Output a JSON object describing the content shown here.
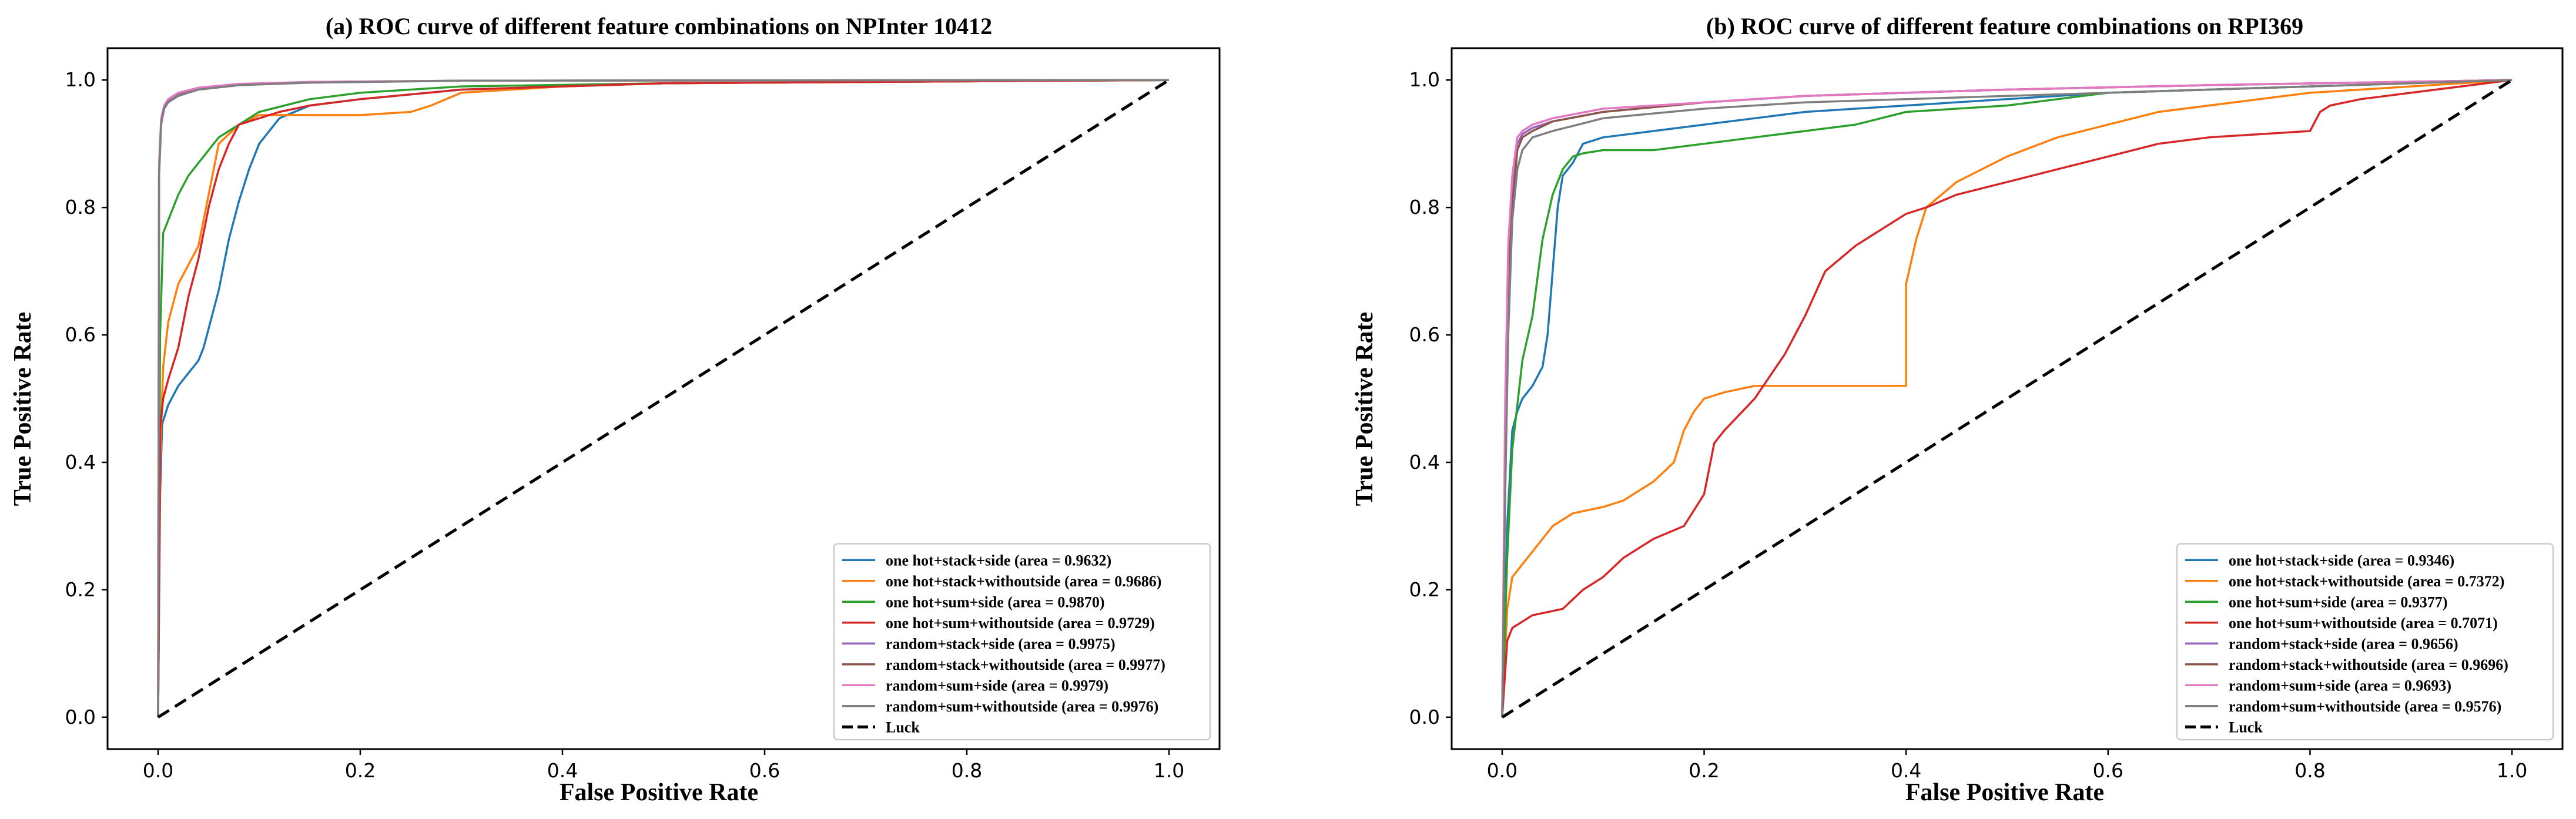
{
  "chart_data": [
    {
      "type": "line",
      "title": "(a) ROC curve of different feature combinations on NPInter 10412",
      "xlabel": "False Positive Rate",
      "ylabel": "True Positive Rate",
      "xlim": [
        -0.05,
        1.05
      ],
      "ylim": [
        -0.05,
        1.05
      ],
      "xticks": [
        "0.0",
        "0.2",
        "0.4",
        "0.6",
        "0.8",
        "1.0"
      ],
      "yticks": [
        "0.0",
        "0.2",
        "0.4",
        "0.6",
        "0.8",
        "1.0"
      ],
      "grid": false,
      "legend_position": "lower right",
      "series": [
        {
          "name": "one hot+stack+side (area = 0.9632)",
          "color": "#1f77b4",
          "x": [
            0,
            0.002,
            0.004,
            0.01,
            0.02,
            0.03,
            0.035,
            0.04,
            0.045,
            0.05,
            0.055,
            0.06,
            0.065,
            0.07,
            0.08,
            0.09,
            0.1,
            0.12,
            0.15,
            0.2,
            0.3,
            0.5,
            1.0
          ],
          "y": [
            0,
            0.35,
            0.46,
            0.49,
            0.52,
            0.54,
            0.55,
            0.56,
            0.58,
            0.61,
            0.64,
            0.67,
            0.71,
            0.75,
            0.81,
            0.86,
            0.9,
            0.94,
            0.96,
            0.97,
            0.985,
            0.995,
            1.0
          ]
        },
        {
          "name": "one hot+stack+withoutside (area = 0.9686)",
          "color": "#ff7f0e",
          "x": [
            0,
            0.002,
            0.005,
            0.01,
            0.015,
            0.02,
            0.03,
            0.04,
            0.05,
            0.06,
            0.08,
            0.1,
            0.2,
            0.25,
            0.27,
            0.3,
            0.4,
            0.5,
            1.0
          ],
          "y": [
            0,
            0.4,
            0.55,
            0.62,
            0.65,
            0.68,
            0.71,
            0.74,
            0.82,
            0.9,
            0.93,
            0.945,
            0.945,
            0.95,
            0.96,
            0.98,
            0.99,
            0.995,
            1.0
          ]
        },
        {
          "name": "one hot+sum+side (area = 0.9870)",
          "color": "#2ca02c",
          "x": [
            0,
            0.002,
            0.005,
            0.01,
            0.02,
            0.03,
            0.04,
            0.05,
            0.06,
            0.08,
            0.1,
            0.15,
            0.2,
            0.3,
            0.5,
            1.0
          ],
          "y": [
            0,
            0.6,
            0.76,
            0.78,
            0.82,
            0.85,
            0.87,
            0.89,
            0.91,
            0.93,
            0.95,
            0.97,
            0.98,
            0.99,
            0.995,
            1.0
          ]
        },
        {
          "name": "one hot+sum+withoutside (area = 0.9729)",
          "color": "#d62728",
          "x": [
            0,
            0.002,
            0.005,
            0.01,
            0.02,
            0.03,
            0.04,
            0.05,
            0.06,
            0.07,
            0.08,
            0.1,
            0.12,
            0.15,
            0.2,
            0.3,
            0.5,
            1.0
          ],
          "y": [
            0,
            0.45,
            0.5,
            0.53,
            0.58,
            0.66,
            0.72,
            0.8,
            0.86,
            0.9,
            0.93,
            0.94,
            0.95,
            0.96,
            0.97,
            0.985,
            0.995,
            1.0
          ]
        },
        {
          "name": "random+stack+side (area = 0.9975)",
          "color": "#9467bd",
          "x": [
            0,
            0.001,
            0.003,
            0.006,
            0.01,
            0.02,
            0.04,
            0.08,
            0.15,
            0.3,
            1.0
          ],
          "y": [
            0,
            0.85,
            0.93,
            0.955,
            0.965,
            0.975,
            0.985,
            0.992,
            0.996,
            0.999,
            1.0
          ]
        },
        {
          "name": "random+stack+withoutside (area = 0.9977)",
          "color": "#8c564b",
          "x": [
            0,
            0.001,
            0.003,
            0.006,
            0.01,
            0.02,
            0.04,
            0.08,
            0.15,
            0.3,
            1.0
          ],
          "y": [
            0,
            0.86,
            0.935,
            0.957,
            0.967,
            0.977,
            0.986,
            0.993,
            0.997,
            0.999,
            1.0
          ]
        },
        {
          "name": "random+sum+side (area = 0.9979)",
          "color": "#e377c2",
          "x": [
            0,
            0.001,
            0.003,
            0.006,
            0.01,
            0.02,
            0.04,
            0.08,
            0.15,
            0.3,
            1.0
          ],
          "y": [
            0,
            0.87,
            0.94,
            0.96,
            0.97,
            0.98,
            0.988,
            0.994,
            0.997,
            0.999,
            1.0
          ]
        },
        {
          "name": "random+sum+withoutside (area = 0.9976)",
          "color": "#7f7f7f",
          "x": [
            0,
            0.001,
            0.003,
            0.006,
            0.01,
            0.02,
            0.04,
            0.08,
            0.15,
            0.3,
            1.0
          ],
          "y": [
            0,
            0.855,
            0.932,
            0.956,
            0.966,
            0.976,
            0.985,
            0.992,
            0.996,
            0.999,
            1.0
          ]
        },
        {
          "name": "Luck",
          "color": "#000000",
          "dashed": true,
          "x": [
            0,
            1
          ],
          "y": [
            0,
            1
          ]
        }
      ]
    },
    {
      "type": "line",
      "title": "(b) ROC curve of different feature combinations on RPI369",
      "xlabel": "False Positive Rate",
      "ylabel": "True Positive Rate",
      "xlim": [
        -0.05,
        1.05
      ],
      "ylim": [
        -0.05,
        1.05
      ],
      "xticks": [
        "0.0",
        "0.2",
        "0.4",
        "0.6",
        "0.8",
        "1.0"
      ],
      "yticks": [
        "0.0",
        "0.2",
        "0.4",
        "0.6",
        "0.8",
        "1.0"
      ],
      "grid": false,
      "legend_position": "lower right",
      "series": [
        {
          "name": "one hot+stack+side (area = 0.9346)",
          "color": "#1f77b4",
          "x": [
            0,
            0.005,
            0.01,
            0.015,
            0.02,
            0.03,
            0.04,
            0.045,
            0.05,
            0.055,
            0.06,
            0.07,
            0.08,
            0.1,
            0.15,
            0.2,
            0.25,
            0.3,
            0.35,
            0.4,
            0.6,
            0.8,
            1.0
          ],
          "y": [
            0,
            0.3,
            0.45,
            0.48,
            0.5,
            0.52,
            0.55,
            0.6,
            0.7,
            0.8,
            0.85,
            0.87,
            0.9,
            0.91,
            0.92,
            0.93,
            0.94,
            0.95,
            0.955,
            0.96,
            0.98,
            0.99,
            1.0
          ]
        },
        {
          "name": "one hot+stack+withoutside (area = 0.7372)",
          "color": "#ff7f0e",
          "x": [
            0,
            0.005,
            0.01,
            0.02,
            0.03,
            0.05,
            0.07,
            0.1,
            0.12,
            0.15,
            0.17,
            0.18,
            0.19,
            0.2,
            0.22,
            0.25,
            0.3,
            0.35,
            0.4,
            0.4,
            0.41,
            0.42,
            0.45,
            0.5,
            0.55,
            0.6,
            0.65,
            0.7,
            0.8,
            0.9,
            1.0
          ],
          "y": [
            0,
            0.17,
            0.22,
            0.24,
            0.26,
            0.3,
            0.32,
            0.33,
            0.34,
            0.37,
            0.4,
            0.45,
            0.48,
            0.5,
            0.51,
            0.52,
            0.52,
            0.52,
            0.52,
            0.68,
            0.75,
            0.8,
            0.84,
            0.88,
            0.91,
            0.93,
            0.95,
            0.96,
            0.98,
            0.99,
            1.0
          ]
        },
        {
          "name": "one hot+sum+side (area = 0.9377)",
          "color": "#2ca02c",
          "x": [
            0,
            0.005,
            0.01,
            0.02,
            0.03,
            0.04,
            0.05,
            0.06,
            0.07,
            0.08,
            0.1,
            0.15,
            0.2,
            0.25,
            0.3,
            0.35,
            0.4,
            0.5,
            0.6,
            0.8,
            1.0
          ],
          "y": [
            0,
            0.25,
            0.42,
            0.56,
            0.63,
            0.75,
            0.82,
            0.86,
            0.88,
            0.885,
            0.89,
            0.89,
            0.9,
            0.91,
            0.92,
            0.93,
            0.95,
            0.96,
            0.98,
            0.99,
            1.0
          ]
        },
        {
          "name": "one hot+sum+withoutside (area = 0.7071)",
          "color": "#d62728",
          "x": [
            0,
            0.005,
            0.01,
            0.03,
            0.06,
            0.08,
            0.1,
            0.12,
            0.15,
            0.18,
            0.2,
            0.21,
            0.22,
            0.25,
            0.28,
            0.3,
            0.32,
            0.35,
            0.37,
            0.4,
            0.42,
            0.45,
            0.5,
            0.55,
            0.6,
            0.65,
            0.7,
            0.8,
            0.81,
            0.82,
            0.85,
            0.9,
            1.0
          ],
          "y": [
            0,
            0.12,
            0.14,
            0.16,
            0.17,
            0.2,
            0.22,
            0.25,
            0.28,
            0.3,
            0.35,
            0.43,
            0.45,
            0.5,
            0.57,
            0.63,
            0.7,
            0.74,
            0.76,
            0.79,
            0.8,
            0.82,
            0.84,
            0.86,
            0.88,
            0.9,
            0.91,
            0.92,
            0.95,
            0.96,
            0.97,
            0.98,
            1.0
          ]
        },
        {
          "name": "random+stack+side (area = 0.9656)",
          "color": "#9467bd",
          "x": [
            0,
            0.003,
            0.006,
            0.01,
            0.015,
            0.02,
            0.03,
            0.05,
            0.1,
            0.2,
            0.3,
            0.5,
            0.7,
            1.0
          ],
          "y": [
            0,
            0.45,
            0.7,
            0.82,
            0.9,
            0.915,
            0.925,
            0.935,
            0.95,
            0.965,
            0.975,
            0.985,
            0.992,
            1.0
          ]
        },
        {
          "name": "random+stack+withoutside (area = 0.9696)",
          "color": "#8c564b",
          "x": [
            0,
            0.003,
            0.006,
            0.01,
            0.015,
            0.02,
            0.03,
            0.05,
            0.1,
            0.2,
            0.3,
            0.5,
            0.7,
            1.0
          ],
          "y": [
            0,
            0.4,
            0.68,
            0.8,
            0.89,
            0.91,
            0.92,
            0.935,
            0.95,
            0.965,
            0.975,
            0.985,
            0.992,
            1.0
          ]
        },
        {
          "name": "random+sum+side (area = 0.9693)",
          "color": "#e377c2",
          "x": [
            0,
            0.003,
            0.006,
            0.01,
            0.015,
            0.02,
            0.03,
            0.05,
            0.1,
            0.2,
            0.3,
            0.5,
            0.7,
            1.0
          ],
          "y": [
            0,
            0.5,
            0.74,
            0.85,
            0.91,
            0.92,
            0.93,
            0.94,
            0.955,
            0.965,
            0.975,
            0.985,
            0.992,
            1.0
          ]
        },
        {
          "name": "random+sum+withoutside (area = 0.9576)",
          "color": "#7f7f7f",
          "x": [
            0,
            0.003,
            0.006,
            0.01,
            0.015,
            0.02,
            0.03,
            0.05,
            0.1,
            0.2,
            0.3,
            0.5,
            0.7,
            1.0
          ],
          "y": [
            0,
            0.35,
            0.6,
            0.78,
            0.86,
            0.89,
            0.91,
            0.92,
            0.94,
            0.955,
            0.965,
            0.975,
            0.985,
            1.0
          ]
        },
        {
          "name": "Luck",
          "color": "#000000",
          "dashed": true,
          "x": [
            0,
            1
          ],
          "y": [
            0,
            1
          ]
        }
      ]
    }
  ]
}
